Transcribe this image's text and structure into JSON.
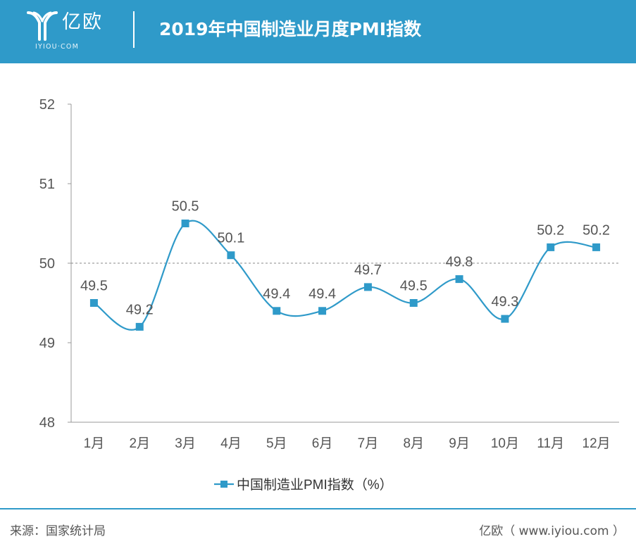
{
  "header": {
    "logo_text": "亿欧",
    "logo_sub": "IYIOU·COM",
    "title": "2019年中国制造业月度PMI指数"
  },
  "colors": {
    "header_bg": "#2f9ac9",
    "series": "#2f9ac9",
    "axis": "#999999",
    "text": "#555555"
  },
  "chart_data": {
    "type": "line",
    "title": "2019年中国制造业月度PMI指数",
    "categories": [
      "1月",
      "2月",
      "3月",
      "4月",
      "5月",
      "6月",
      "7月",
      "8月",
      "9月",
      "10月",
      "11月",
      "12月"
    ],
    "series": [
      {
        "name": "中国制造业PMI指数（%）",
        "values": [
          49.5,
          49.2,
          50.5,
          50.1,
          49.4,
          49.4,
          49.7,
          49.5,
          49.8,
          49.3,
          50.2,
          50.2
        ],
        "data_labels": [
          "49.5",
          "49.2",
          "50.5",
          "50.1",
          "49.4",
          "49.4",
          "49.7",
          "49.5",
          "49.8",
          "49.3",
          "50.2",
          "50.2"
        ]
      }
    ],
    "ylim": [
      48,
      52
    ],
    "yticks": [
      "48",
      "49",
      "50",
      "51",
      "52"
    ],
    "reference_line": 50,
    "grid": false,
    "smooth": true,
    "legend": "bottom-center"
  },
  "footer": {
    "source": "来源：国家统计局",
    "site": "亿欧（ www.iyiou.com ）"
  }
}
